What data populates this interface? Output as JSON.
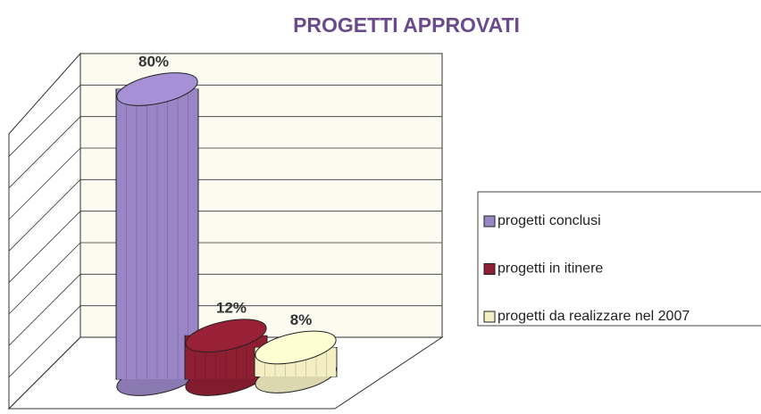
{
  "chart_data": {
    "type": "bar3d",
    "title": "PROGETTI APPROVATI",
    "series": [
      {
        "name": "progetti conclusi",
        "color": "#9a86c6",
        "values": [
          80
        ],
        "value_labels": [
          "80%"
        ]
      },
      {
        "name": "progetti in itinere",
        "color": "#8e1f33",
        "values": [
          12
        ],
        "value_labels": [
          "12%"
        ]
      },
      {
        "name": "progetti da realizzare nel 2007",
        "color": "#f3efc2",
        "values": [
          8
        ],
        "value_labels": [
          "8%"
        ]
      }
    ],
    "ylim": [
      0,
      80
    ],
    "yticks": [
      0,
      10,
      20,
      30,
      40,
      50,
      60,
      70,
      80
    ],
    "grid": true
  }
}
